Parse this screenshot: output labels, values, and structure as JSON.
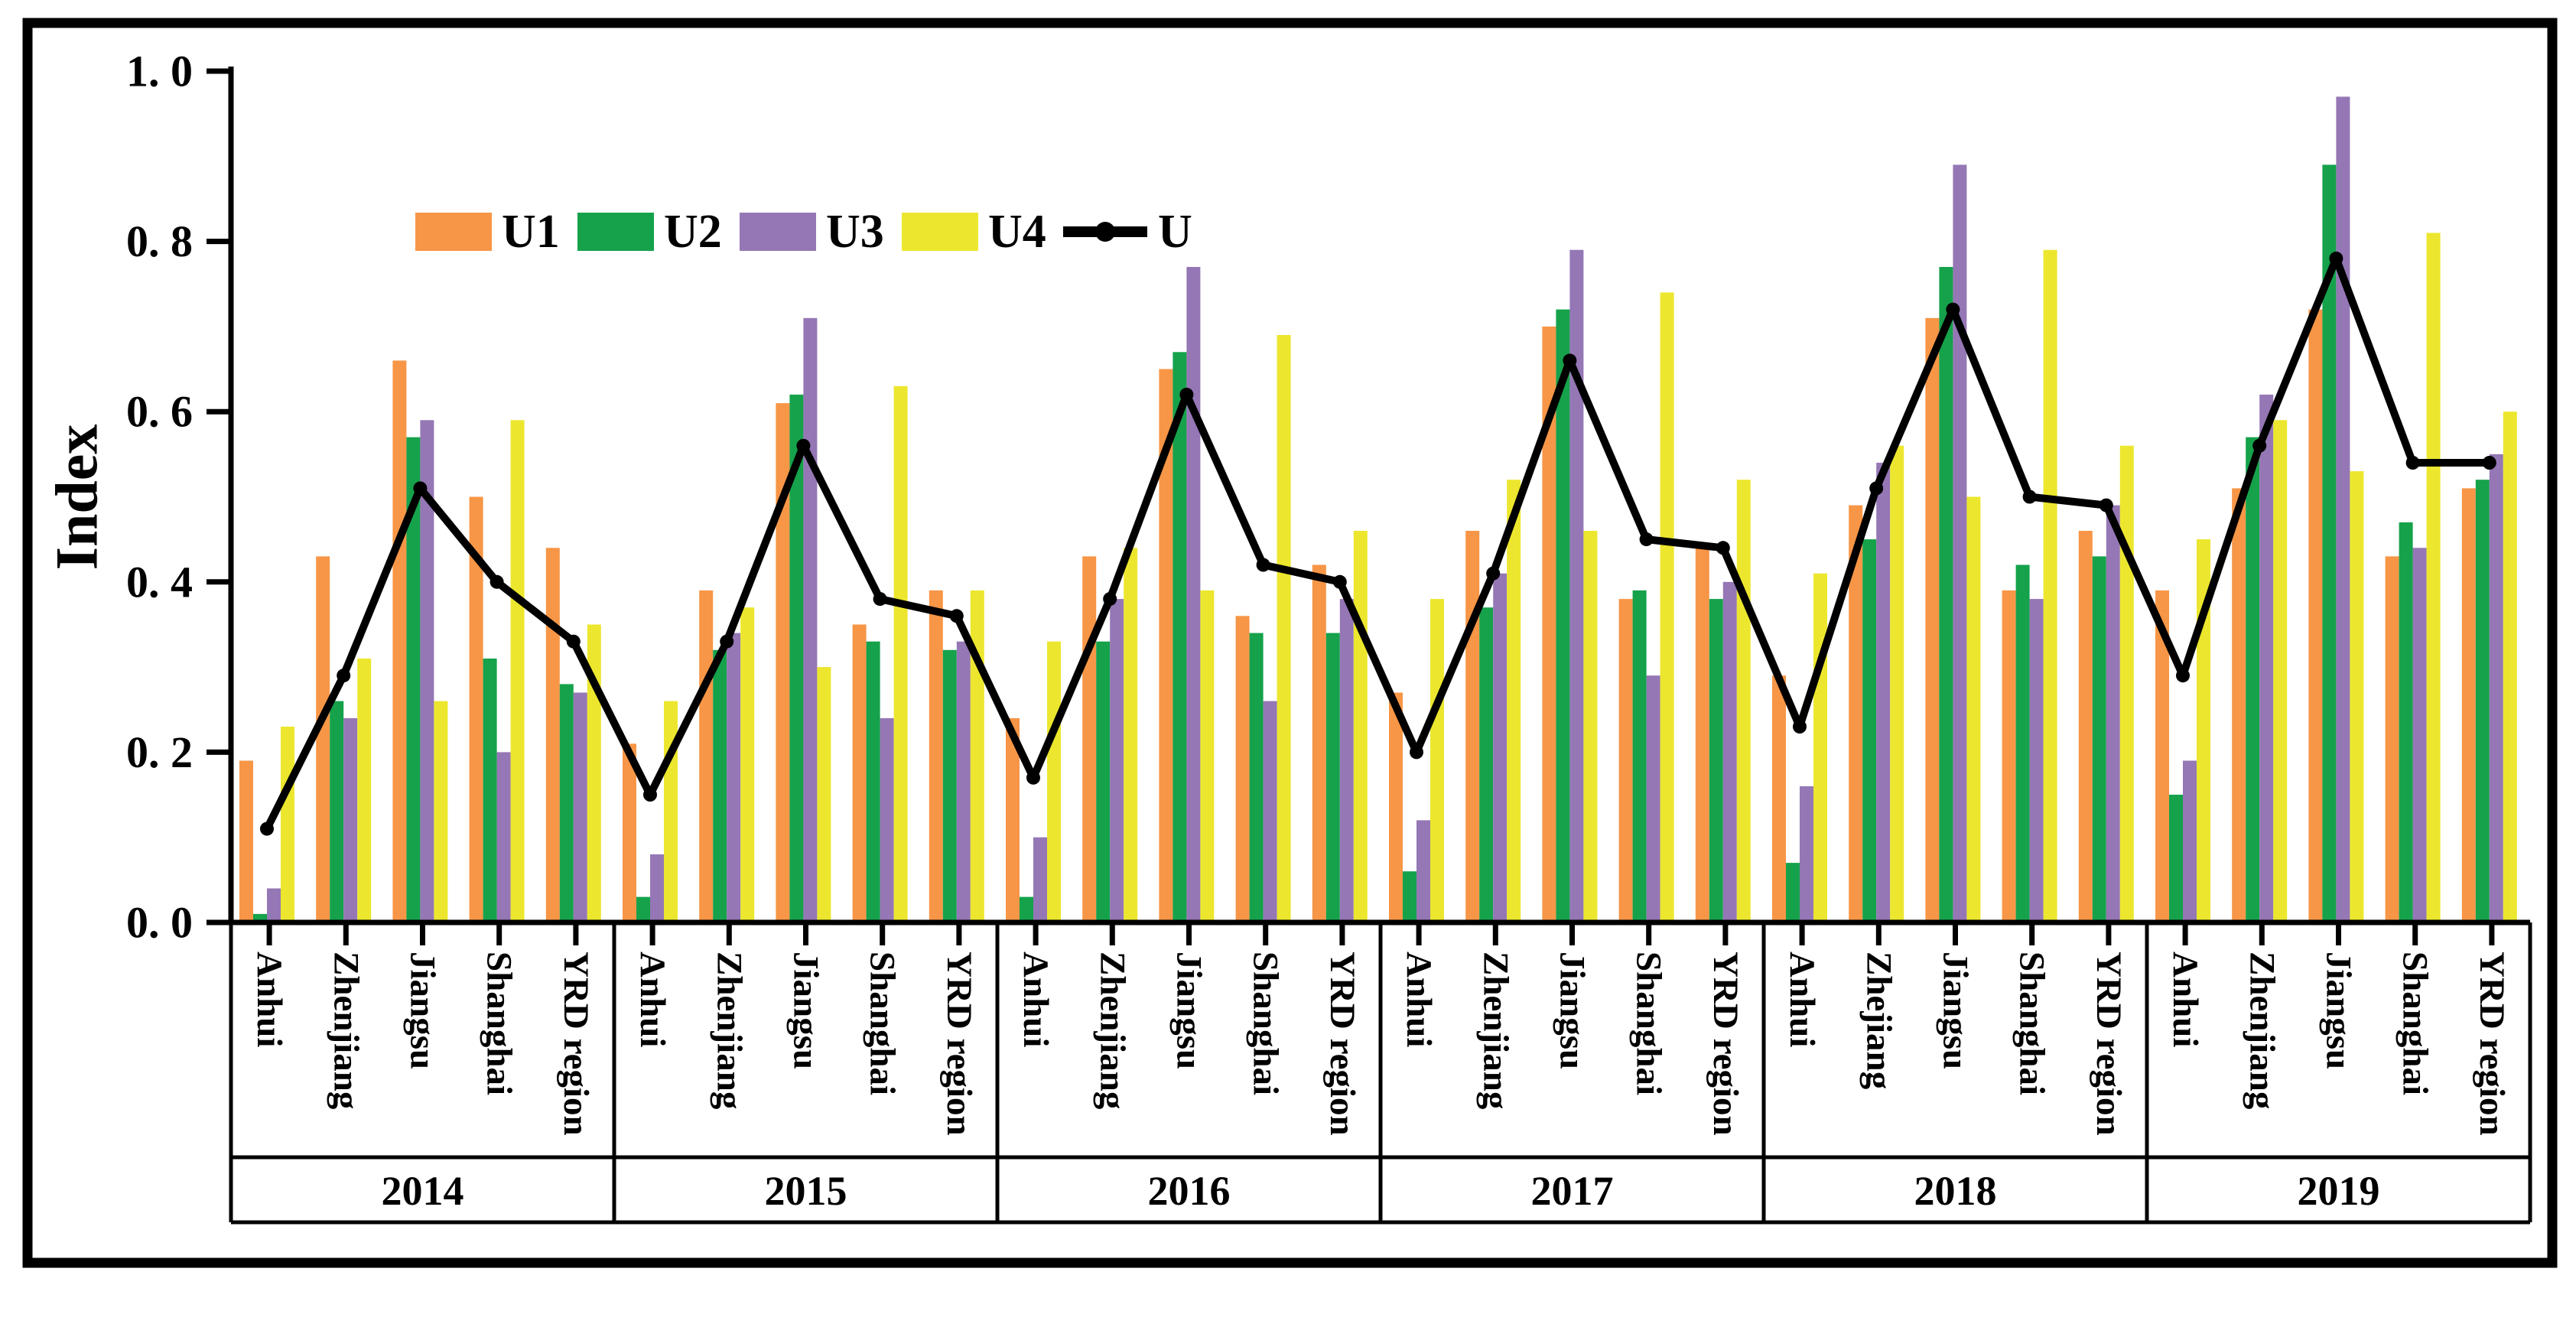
{
  "chart_data": {
    "type": "bar",
    "title": "",
    "xlabel": "",
    "ylabel": "Index",
    "ylim": [
      0,
      1
    ],
    "ytick_step": 0.2,
    "ytick_labels": [
      "0. 0",
      "0. 2",
      "0. 4",
      "0. 6",
      "0. 8",
      "1. 0"
    ],
    "grid": false,
    "legend_position": "top-inside",
    "legend_entries": [
      "U1",
      "U2",
      "U3",
      "U4",
      "U"
    ],
    "colors": {
      "U1": "#F79646",
      "U2": "#15A24B",
      "U3": "#9577B5",
      "U4": "#ECE72E",
      "U": "#000000"
    },
    "groups": [
      {
        "year": "2014",
        "regions": [
          "Anhui",
          "Zhenjiang",
          "Jiangsu",
          "Shanghai",
          "YRD region"
        ]
      },
      {
        "year": "2015",
        "regions": [
          "Anhui",
          "Zhenjiang",
          "Jiangsu",
          "Shanghai",
          "YRD region"
        ]
      },
      {
        "year": "2016",
        "regions": [
          "Anhui",
          "Zhenjiang",
          "Jiangsu",
          "Shanghai",
          "YRD region"
        ]
      },
      {
        "year": "2017",
        "regions": [
          "Anhui",
          "Zhenjiang",
          "Jiangsu",
          "Shanghai",
          "YRD region"
        ]
      },
      {
        "year": "2018",
        "regions": [
          "Anhui",
          "Zhejiang",
          "Jiangsu",
          "Shanghai",
          "YRD region"
        ]
      },
      {
        "year": "2019",
        "regions": [
          "Anhui",
          "Zhenjiang",
          "Jiangsu",
          "Shanghai",
          "YRD region"
        ]
      }
    ],
    "series": [
      {
        "name": "U1",
        "render": "bar",
        "values": [
          0.19,
          0.43,
          0.66,
          0.5,
          0.44,
          0.21,
          0.39,
          0.61,
          0.35,
          0.39,
          0.24,
          0.43,
          0.65,
          0.36,
          0.42,
          0.27,
          0.46,
          0.7,
          0.38,
          0.44,
          0.29,
          0.49,
          0.71,
          0.39,
          0.46,
          0.39,
          0.51,
          0.72,
          0.43,
          0.51
        ]
      },
      {
        "name": "U2",
        "render": "bar",
        "values": [
          0.01,
          0.26,
          0.57,
          0.31,
          0.28,
          0.03,
          0.32,
          0.62,
          0.33,
          0.32,
          0.03,
          0.33,
          0.67,
          0.34,
          0.34,
          0.06,
          0.37,
          0.72,
          0.39,
          0.38,
          0.07,
          0.45,
          0.77,
          0.42,
          0.43,
          0.15,
          0.57,
          0.89,
          0.47,
          0.52
        ]
      },
      {
        "name": "U3",
        "render": "bar",
        "values": [
          0.04,
          0.24,
          0.59,
          0.2,
          0.27,
          0.08,
          0.34,
          0.71,
          0.24,
          0.33,
          0.1,
          0.38,
          0.77,
          0.26,
          0.38,
          0.12,
          0.41,
          0.79,
          0.29,
          0.4,
          0.16,
          0.54,
          0.89,
          0.38,
          0.49,
          0.19,
          0.62,
          0.97,
          0.44,
          0.55
        ]
      },
      {
        "name": "U4",
        "render": "bar",
        "values": [
          0.23,
          0.31,
          0.26,
          0.59,
          0.35,
          0.26,
          0.37,
          0.3,
          0.63,
          0.39,
          0.33,
          0.44,
          0.39,
          0.69,
          0.46,
          0.38,
          0.52,
          0.46,
          0.74,
          0.52,
          0.41,
          0.56,
          0.5,
          0.79,
          0.56,
          0.45,
          0.59,
          0.53,
          0.81,
          0.6
        ]
      },
      {
        "name": "U",
        "render": "line",
        "values": [
          0.11,
          0.29,
          0.51,
          0.4,
          0.33,
          0.15,
          0.33,
          0.56,
          0.38,
          0.36,
          0.17,
          0.38,
          0.62,
          0.42,
          0.4,
          0.2,
          0.41,
          0.66,
          0.45,
          0.44,
          0.23,
          0.51,
          0.72,
          0.5,
          0.49,
          0.29,
          0.56,
          0.78,
          0.54,
          0.54
        ]
      }
    ]
  }
}
